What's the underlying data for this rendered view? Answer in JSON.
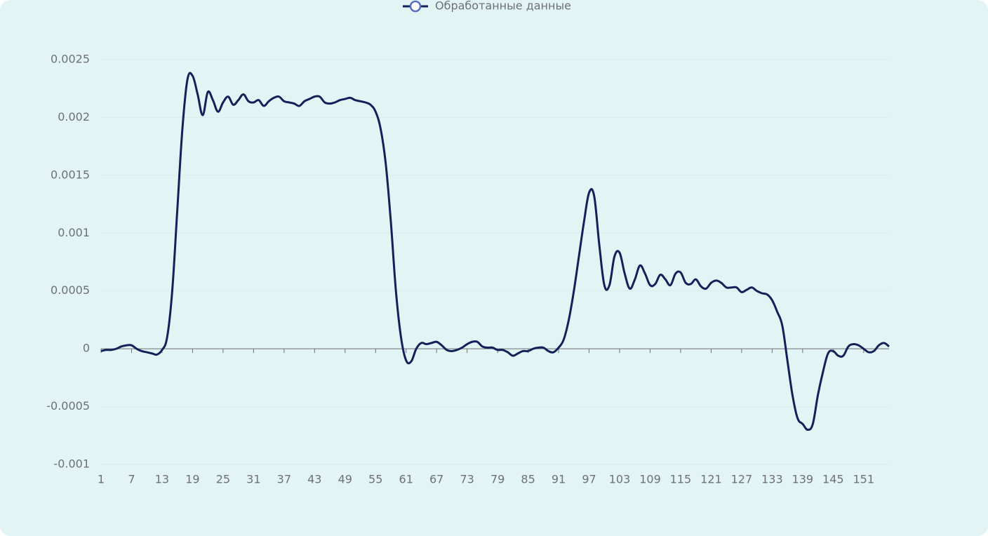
{
  "chart_data": {
    "type": "line",
    "legend": "top",
    "categories": [
      1,
      null,
      null,
      null,
      null,
      null,
      7,
      null,
      null,
      null,
      null,
      null,
      13,
      null,
      null,
      null,
      null,
      null,
      19,
      null,
      null,
      null,
      null,
      null,
      25,
      null,
      null,
      null,
      null,
      null,
      31,
      null,
      null,
      null,
      null,
      null,
      37,
      null,
      null,
      null,
      null,
      null,
      43,
      null,
      null,
      null,
      null,
      null,
      49,
      null,
      null,
      null,
      null,
      null,
      55,
      null,
      null,
      null,
      null,
      null,
      61,
      null,
      null,
      null,
      null,
      null,
      67,
      null,
      null,
      null,
      null,
      null,
      73,
      null,
      null,
      null,
      null,
      null,
      79,
      null,
      null,
      null,
      null,
      null,
      85,
      null,
      null,
      null,
      null,
      null,
      91,
      null,
      null,
      null,
      null,
      null,
      97,
      null,
      null,
      null,
      null,
      null,
      103,
      null,
      null,
      null,
      null,
      null,
      109,
      null,
      null,
      null,
      null,
      null,
      115,
      null,
      null,
      null,
      null,
      null,
      121,
      null,
      null,
      null,
      null,
      null,
      127,
      null,
      null,
      null,
      null,
      null,
      133,
      null,
      null,
      null,
      null,
      null,
      139,
      null,
      null,
      null,
      null,
      null,
      145,
      null,
      null,
      null,
      null,
      null,
      151,
      null,
      null,
      null,
      null,
      null
    ],
    "series": [
      {
        "name": "Обработанные данные",
        "color": "#13215a",
        "values": [
          -2e-05,
          -1e-05,
          -1e-05,
          0,
          2e-05,
          3e-05,
          3e-05,
          0,
          -2e-05,
          -3e-05,
          -4e-05,
          -5e-05,
          -1e-05,
          0.0001,
          0.0005,
          0.0012,
          0.0019,
          0.00233,
          0.00236,
          0.0022,
          0.00202,
          0.00222,
          0.00215,
          0.00205,
          0.00213,
          0.00218,
          0.00211,
          0.00215,
          0.0022,
          0.00214,
          0.00213,
          0.00215,
          0.0021,
          0.00214,
          0.00217,
          0.00218,
          0.00214,
          0.00213,
          0.00212,
          0.0021,
          0.00214,
          0.00216,
          0.00218,
          0.00218,
          0.00213,
          0.00212,
          0.00213,
          0.00215,
          0.00216,
          0.00217,
          0.00215,
          0.00214,
          0.00213,
          0.00211,
          0.00205,
          0.0019,
          0.0016,
          0.0011,
          0.0005,
          0.0001,
          -0.0001,
          -0.00011,
          0,
          5e-05,
          4e-05,
          5e-05,
          6e-05,
          3e-05,
          -1e-05,
          -2e-05,
          -1e-05,
          1e-05,
          4e-05,
          6e-05,
          6e-05,
          2e-05,
          1e-05,
          1e-05,
          -1e-05,
          -1e-05,
          -3e-05,
          -6e-05,
          -4e-05,
          -2e-05,
          -2e-05,
          0,
          1e-05,
          1e-05,
          -2e-05,
          -3e-05,
          1e-05,
          8e-05,
          0.00025,
          0.0005,
          0.0008,
          0.0011,
          0.00135,
          0.00132,
          0.0009,
          0.00055,
          0.00055,
          0.0008,
          0.00083,
          0.00065,
          0.00052,
          0.0006,
          0.00072,
          0.00065,
          0.00055,
          0.00056,
          0.00064,
          0.0006,
          0.00055,
          0.00065,
          0.00066,
          0.00057,
          0.00056,
          0.0006,
          0.00054,
          0.00052,
          0.00057,
          0.00059,
          0.00057,
          0.00053,
          0.00053,
          0.00053,
          0.00049,
          0.00051,
          0.00053,
          0.0005,
          0.00048,
          0.00047,
          0.00042,
          0.00032,
          0.0002,
          -0.0001,
          -0.0004,
          -0.0006,
          -0.00065,
          -0.0007,
          -0.00065,
          -0.0004,
          -0.0002,
          -4e-05,
          -2e-05,
          -6e-05,
          -6e-05,
          2e-05,
          4e-05,
          3e-05,
          0,
          -3e-05,
          -2e-05,
          3e-05,
          5e-05,
          2e-05
        ]
      }
    ],
    "ylim": [
      -0.001,
      0.0025
    ],
    "yticks": [
      -0.001,
      -0.0005,
      0,
      0.0005,
      0.001,
      0.0015,
      0.002,
      0.0025
    ],
    "grid": true
  }
}
